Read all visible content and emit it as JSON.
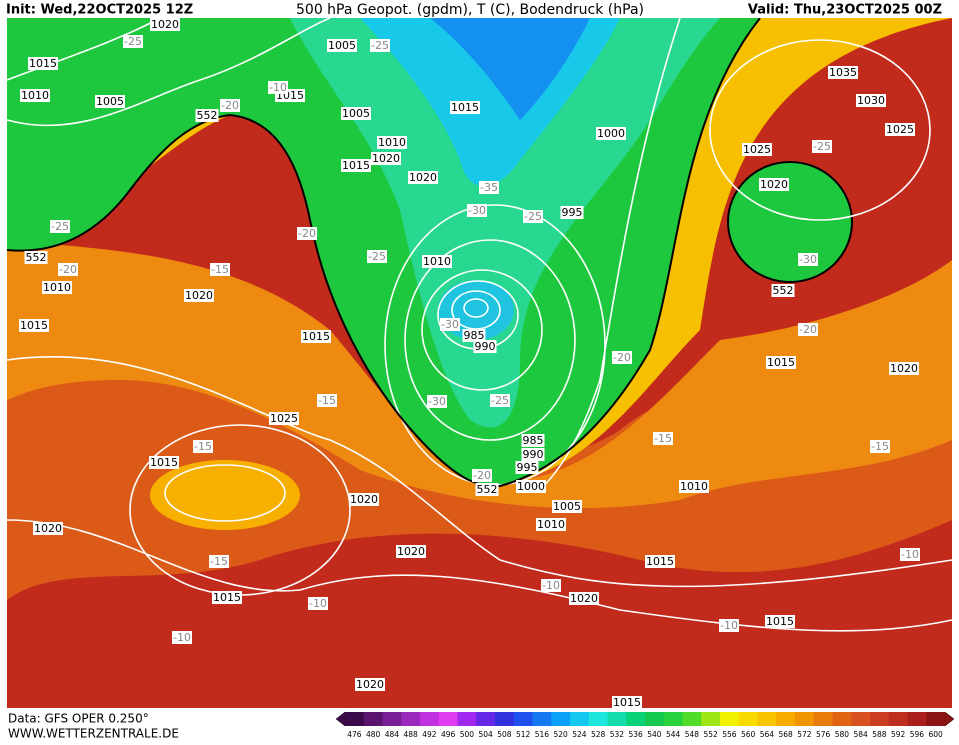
{
  "header": {
    "init": "Init: Wed,22OCT2025 12Z",
    "title": "500 hPa Geopot. (gpdm), T (C), Bodendruck (hPa)",
    "valid": "Valid: Thu,23OCT2025 00Z"
  },
  "map": {
    "isobar_labels": [
      1020,
      1015,
      1010,
      1005,
      1015,
      1005,
      1005,
      1015,
      1010,
      1020,
      1015,
      1020,
      1000,
      995,
      1010,
      1020,
      1010,
      1015,
      1015,
      985,
      990,
      1025,
      1015,
      1020,
      1020,
      985,
      990,
      995,
      1000,
      1005,
      1010,
      1010,
      1020,
      1015,
      1015,
      1020,
      1015,
      1020,
      1015,
      1035,
      1030,
      1025,
      1025,
      1020,
      1015,
      1020
    ],
    "temperature_labels": [
      -25,
      -20,
      -10,
      -25,
      -25,
      -20,
      -20,
      -25,
      -15,
      -35,
      -30,
      -25,
      -30,
      -20,
      -30,
      -25,
      -15,
      -15,
      -15,
      -10,
      -10,
      -10,
      -10,
      -15,
      -15,
      -10,
      -25,
      -30,
      -20,
      -20
    ],
    "geopotential_labels": [
      552,
      552,
      552,
      552
    ]
  },
  "colorbar": {
    "ticks": [
      476,
      480,
      484,
      488,
      492,
      496,
      500,
      504,
      508,
      512,
      516,
      520,
      524,
      528,
      532,
      536,
      540,
      544,
      548,
      552,
      556,
      560,
      564,
      568,
      572,
      576,
      580,
      584,
      588,
      592,
      596,
      600
    ],
    "colors": [
      "#3c0a4a",
      "#5a1470",
      "#7a1e96",
      "#9a28bc",
      "#c032e0",
      "#e03cf0",
      "#a028f0",
      "#6428e6",
      "#3232dc",
      "#1e50f0",
      "#1478f5",
      "#0aa0f8",
      "#14c8f0",
      "#1ee6dc",
      "#14dcaa",
      "#0ad278",
      "#14c850",
      "#28d23c",
      "#50dc28",
      "#a0e614",
      "#f0f000",
      "#f8dc00",
      "#f8c400",
      "#f8ac00",
      "#f09400",
      "#e87c0a",
      "#e06414",
      "#d8501e",
      "#cc3c1e",
      "#be2d1e",
      "#aa1e1e",
      "#8c1414"
    ]
  },
  "footer": {
    "source": "Data: GFS OPER 0.250°",
    "website": "WWW.WETTERZENTRALE.DE"
  }
}
